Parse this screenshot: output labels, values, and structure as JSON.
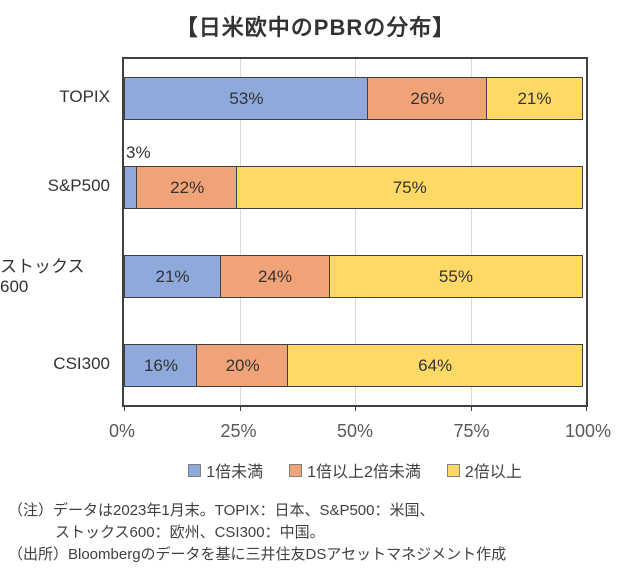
{
  "title": "【日米欧中のPBRの分布】",
  "chart_data": {
    "type": "bar",
    "orientation": "horizontal",
    "stacked": true,
    "title": "【日米欧中のPBRの分布】",
    "categories": [
      "TOPIX",
      "S&P500",
      "ストックス600",
      "CSI300"
    ],
    "series": [
      {
        "name": "1倍未満",
        "color": "#8EA9DB",
        "values": [
          53,
          3,
          21,
          16
        ]
      },
      {
        "name": "1倍以上2倍未満",
        "color": "#F0A377",
        "values": [
          26,
          22,
          24,
          20
        ]
      },
      {
        "name": "2倍以上",
        "color": "#FFD966",
        "values": [
          21,
          75,
          55,
          64
        ]
      }
    ],
    "data_label_format": "{value}%",
    "outside_labels": [
      {
        "category_index": 1,
        "series_index": 0,
        "text": "3%"
      }
    ],
    "x_ticks": [
      "0%",
      "25%",
      "50%",
      "75%",
      "100%"
    ],
    "xlim": [
      0,
      100
    ],
    "grid": "vertical",
    "gridline_positions": [
      25,
      50,
      75
    ],
    "legend_position": "bottom"
  },
  "notes": {
    "line1": "（注）データは2023年1月末。TOPIX：日本、S&P500：米国、",
    "line2": "ストックス600：欧州、CSI300：中国。",
    "line3": "（出所）Bloombergのデータを基に三井住友DSアセットマネジメント作成"
  }
}
